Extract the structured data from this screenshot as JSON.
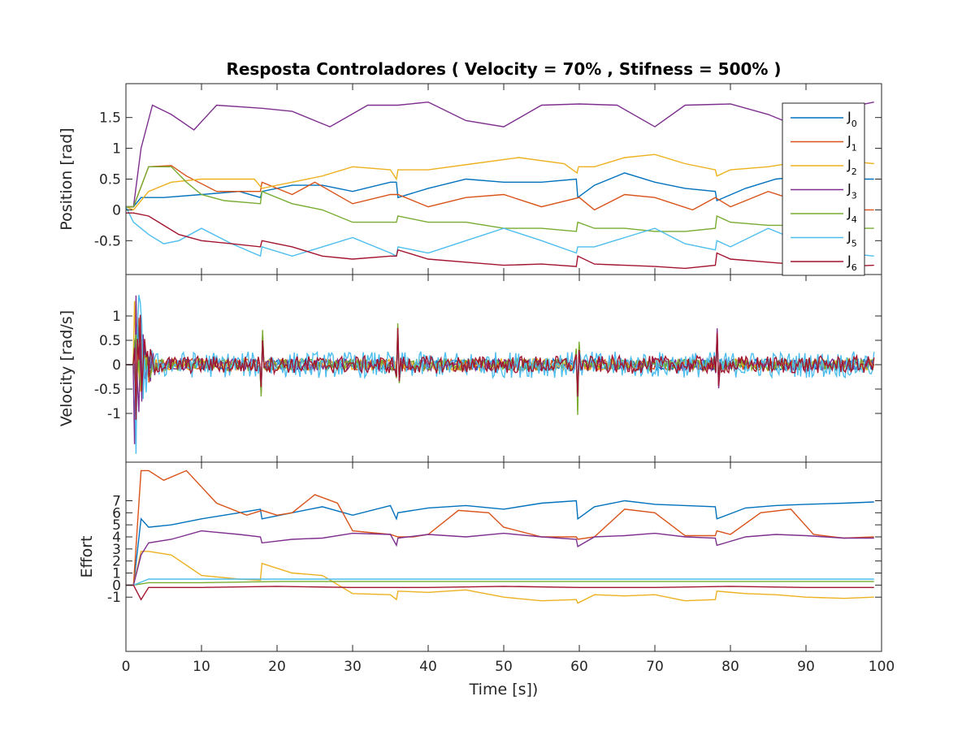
{
  "chart_data": [
    {
      "type": "line",
      "panel": "position",
      "title": "Resposta Controladores ( Velocity = 70% , Stifness = 500% )",
      "ylabel": "Position [rad]",
      "xlim": [
        0,
        100
      ],
      "ylim": [
        -1.05,
        2.05
      ],
      "yticks": [
        -0.5,
        0,
        0.5,
        1,
        1.5
      ],
      "ytick_labels": [
        "-0.5",
        "0",
        "0.5",
        "1",
        "1.5"
      ],
      "grid": false,
      "legend": "right",
      "series": [
        {
          "name": "J",
          "sub": "0",
          "color": "#0072BD",
          "x": [
            0,
            1,
            2,
            5,
            10,
            15,
            17.8,
            18,
            22,
            26,
            30,
            35,
            35.8,
            36,
            40,
            45,
            50,
            55,
            59.6,
            59.8,
            62,
            66,
            70,
            74,
            78,
            78.2,
            82,
            86,
            90,
            95,
            99
          ],
          "y": [
            0.05,
            0.05,
            0.2,
            0.2,
            0.25,
            0.3,
            0.2,
            0.3,
            0.4,
            0.4,
            0.3,
            0.45,
            0.45,
            0.2,
            0.35,
            0.5,
            0.45,
            0.45,
            0.5,
            0.2,
            0.4,
            0.6,
            0.45,
            0.35,
            0.3,
            0.15,
            0.35,
            0.5,
            0.55,
            0.5,
            0.5
          ]
        },
        {
          "name": "J",
          "sub": "1",
          "color": "#D95319",
          "x": [
            0,
            1,
            3,
            6,
            8,
            12,
            17.8,
            18,
            22,
            25,
            30,
            35,
            36,
            40,
            45,
            50,
            55,
            60,
            62,
            66,
            70,
            75,
            78,
            80,
            85,
            90,
            95,
            99
          ],
          "y": [
            0.05,
            0.05,
            0.7,
            0.72,
            0.55,
            0.3,
            0.3,
            0.45,
            0.25,
            0.45,
            0.1,
            0.25,
            0.25,
            0.05,
            0.2,
            0.25,
            0.05,
            0.2,
            0.0,
            0.25,
            0.2,
            0.0,
            0.2,
            0.05,
            0.3,
            0.1,
            0.0,
            0.0
          ]
        },
        {
          "name": "J",
          "sub": "2",
          "color": "#EDB120",
          "x": [
            0,
            1,
            3,
            6,
            10,
            17,
            18,
            22,
            26,
            30,
            35,
            35.8,
            36,
            40,
            46,
            52,
            58,
            59.7,
            59.9,
            62,
            66,
            70,
            74,
            78,
            78.2,
            80,
            85,
            90,
            95,
            99
          ],
          "y": [
            0.05,
            0.0,
            0.3,
            0.45,
            0.5,
            0.5,
            0.35,
            0.45,
            0.55,
            0.7,
            0.65,
            0.5,
            0.65,
            0.65,
            0.75,
            0.85,
            0.75,
            0.6,
            0.7,
            0.7,
            0.85,
            0.9,
            0.75,
            0.65,
            0.55,
            0.65,
            0.7,
            0.8,
            0.8,
            0.75
          ]
        },
        {
          "name": "J",
          "sub": "3",
          "color": "#7E2F8E",
          "x": [
            0,
            1,
            2,
            3.5,
            6,
            9,
            12,
            18,
            22,
            27,
            32,
            36,
            40,
            45,
            50,
            55,
            60,
            65,
            70,
            74,
            80,
            85,
            90,
            95,
            99
          ],
          "y": [
            0.05,
            0.05,
            1.0,
            1.7,
            1.55,
            1.3,
            1.7,
            1.65,
            1.6,
            1.35,
            1.7,
            1.7,
            1.75,
            1.45,
            1.35,
            1.7,
            1.72,
            1.7,
            1.35,
            1.7,
            1.72,
            1.55,
            1.3,
            1.65,
            1.75
          ]
        },
        {
          "name": "J",
          "sub": "4",
          "color": "#77AC30",
          "x": [
            0,
            1,
            3,
            6,
            8,
            10,
            13,
            17.8,
            18,
            22,
            26,
            30,
            35,
            35.8,
            36,
            40,
            45,
            50,
            55,
            59.6,
            59.8,
            62,
            66,
            70,
            74,
            78,
            78.2,
            80,
            85,
            90,
            95,
            99
          ],
          "y": [
            0.05,
            0.05,
            0.7,
            0.7,
            0.45,
            0.25,
            0.15,
            0.1,
            0.3,
            0.1,
            0.0,
            -0.2,
            -0.2,
            -0.2,
            -0.1,
            -0.2,
            -0.2,
            -0.3,
            -0.3,
            -0.35,
            -0.2,
            -0.3,
            -0.3,
            -0.35,
            -0.35,
            -0.3,
            -0.1,
            -0.2,
            -0.25,
            -0.25,
            -0.3,
            -0.3
          ]
        },
        {
          "name": "J",
          "sub": "5",
          "color": "#4DBEEE",
          "x": [
            0,
            1,
            3,
            5,
            7,
            10,
            14,
            17.8,
            18,
            22,
            26,
            30,
            35,
            35.8,
            36,
            40,
            45,
            50,
            55,
            59.6,
            59.8,
            62,
            66,
            70,
            74,
            78,
            78.2,
            80,
            85,
            90,
            95,
            99
          ],
          "y": [
            0.05,
            -0.2,
            -0.4,
            -0.55,
            -0.5,
            -0.3,
            -0.55,
            -0.75,
            -0.6,
            -0.75,
            -0.6,
            -0.45,
            -0.7,
            -0.75,
            -0.6,
            -0.7,
            -0.5,
            -0.3,
            -0.5,
            -0.7,
            -0.6,
            -0.6,
            -0.45,
            -0.3,
            -0.55,
            -0.65,
            -0.5,
            -0.6,
            -0.3,
            -0.55,
            -0.7,
            -0.75
          ]
        },
        {
          "name": "J",
          "sub": "6",
          "color": "#A2142F",
          "x": [
            0,
            1,
            3,
            5,
            7,
            10,
            14,
            17.8,
            18,
            22,
            26,
            30,
            35,
            35.8,
            36,
            40,
            45,
            50,
            55,
            59.6,
            59.8,
            62,
            66,
            70,
            74,
            78,
            78.2,
            80,
            85,
            90,
            95,
            99
          ],
          "y": [
            -0.05,
            -0.05,
            -0.1,
            -0.25,
            -0.4,
            -0.5,
            -0.55,
            -0.6,
            -0.5,
            -0.6,
            -0.75,
            -0.8,
            -0.75,
            -0.75,
            -0.65,
            -0.8,
            -0.85,
            -0.9,
            -0.88,
            -0.92,
            -0.75,
            -0.88,
            -0.9,
            -0.92,
            -0.95,
            -0.9,
            -0.7,
            -0.8,
            -0.85,
            -0.9,
            -0.92,
            -0.9
          ]
        }
      ]
    },
    {
      "type": "line",
      "panel": "velocity",
      "ylabel": "Velocity [rad/s]",
      "xlim": [
        0,
        100
      ],
      "ylim": [
        -2,
        1.85
      ],
      "yticks": [
        -1,
        -0.5,
        0,
        0.5,
        1
      ],
      "ytick_labels": [
        "-1",
        "-0.5",
        "0",
        "0.5",
        "1"
      ],
      "grid": false,
      "noise_amplitude": 0.15,
      "spike_times": [
        1.5,
        18,
        36,
        59.8,
        78.3
      ],
      "series": [
        {
          "name": "J",
          "sub": "0",
          "color": "#0072BD",
          "spikes": [
            1.0,
            0.8,
            0.6,
            0.7,
            0.8
          ]
        },
        {
          "name": "J",
          "sub": "1",
          "color": "#D95319",
          "spikes": [
            1.4,
            0.7,
            0.8,
            0.9,
            0.7
          ]
        },
        {
          "name": "J",
          "sub": "2",
          "color": "#EDB120",
          "spikes": [
            1.2,
            0.9,
            0.7,
            1.0,
            0.7
          ]
        },
        {
          "name": "J",
          "sub": "3",
          "color": "#7E2F8E",
          "spikes": [
            1.6,
            0.9,
            0.6,
            0.8,
            0.9
          ]
        },
        {
          "name": "J",
          "sub": "4",
          "color": "#77AC30",
          "spikes": [
            1.3,
            1.0,
            0.9,
            1.1,
            0.6
          ]
        },
        {
          "name": "J",
          "sub": "5",
          "color": "#4DBEEE",
          "spikes": [
            1.9,
            0.6,
            0.7,
            0.7,
            0.6
          ]
        },
        {
          "name": "J",
          "sub": "6",
          "color": "#A2142F",
          "spikes": [
            1.5,
            0.7,
            0.8,
            0.7,
            0.8
          ]
        }
      ],
      "xticks": [
        0,
        10,
        20,
        30,
        40,
        50,
        60,
        70,
        80,
        90,
        100
      ]
    },
    {
      "type": "line",
      "panel": "effort",
      "ylabel": "Effort",
      "xlabel": "Time [s])",
      "xlim": [
        0,
        100
      ],
      "ylim": [
        -5.5,
        10.2
      ],
      "yticks": [
        -1,
        0,
        1,
        2,
        3,
        4,
        5,
        6,
        7
      ],
      "ytick_labels": [
        "-1",
        "0",
        "1",
        "2",
        "3",
        "4",
        "5",
        "6",
        "7"
      ],
      "xticks": [
        0,
        10,
        20,
        30,
        40,
        50,
        60,
        70,
        80,
        90,
        100
      ],
      "xtick_labels": [
        "0",
        "10",
        "20",
        "30",
        "40",
        "50",
        "60",
        "70",
        "80",
        "90",
        "100"
      ],
      "grid": false,
      "series": [
        {
          "name": "J",
          "sub": "0",
          "color": "#0072BD",
          "x": [
            0,
            1,
            2,
            3,
            6,
            10,
            15,
            17.8,
            18,
            22,
            26,
            30,
            35,
            35.8,
            36,
            40,
            45,
            50,
            55,
            59.6,
            59.8,
            62,
            66,
            70,
            74,
            78,
            78.2,
            82,
            86,
            90,
            95,
            99
          ],
          "y": [
            0,
            0,
            5.5,
            4.8,
            5.0,
            5.5,
            6,
            6.3,
            5.5,
            6.0,
            6.5,
            5.8,
            6.6,
            5.5,
            6.0,
            6.4,
            6.6,
            6.3,
            6.8,
            7.0,
            5.5,
            6.5,
            7.0,
            6.7,
            6.6,
            6.5,
            5.5,
            6.4,
            6.6,
            6.7,
            6.8,
            6.9
          ]
        },
        {
          "name": "J",
          "sub": "1",
          "color": "#D95319",
          "x": [
            0,
            1,
            2,
            3,
            5,
            8,
            12,
            16,
            18,
            20,
            22,
            25,
            28,
            30,
            35,
            36,
            38,
            40,
            44,
            48,
            50,
            55,
            59.6,
            59.8,
            62,
            66,
            70,
            74,
            78,
            78.2,
            80,
            84,
            88,
            91,
            95,
            99
          ],
          "y": [
            0,
            0,
            9.5,
            9.5,
            8.7,
            9.5,
            6.8,
            5.8,
            6.2,
            5.8,
            6.0,
            7.5,
            6.8,
            4.5,
            4.2,
            4.0,
            4.0,
            4.2,
            6.2,
            6.0,
            4.8,
            4.0,
            4.0,
            3.8,
            4.0,
            6.3,
            6.0,
            4.1,
            4.1,
            4.5,
            4.2,
            6.0,
            6.3,
            4.2,
            3.9,
            4.0
          ]
        },
        {
          "name": "J",
          "sub": "2",
          "color": "#EDB120",
          "x": [
            0,
            1,
            2,
            3,
            6,
            10,
            15,
            17.8,
            18,
            22,
            26,
            30,
            35,
            35.8,
            36,
            40,
            45,
            50,
            55,
            59.6,
            59.8,
            62,
            66,
            70,
            74,
            78,
            78.2,
            82,
            86,
            90,
            95,
            99
          ],
          "y": [
            0,
            0,
            2.8,
            2.8,
            2.5,
            0.8,
            0.5,
            0.4,
            1.8,
            1.0,
            0.8,
            -0.7,
            -0.8,
            -1.2,
            -0.5,
            -0.6,
            -0.4,
            -1.0,
            -1.3,
            -1.2,
            -1.5,
            -0.8,
            -0.9,
            -0.8,
            -1.3,
            -1.2,
            -0.5,
            -0.7,
            -0.8,
            -1.0,
            -1.1,
            -1.0
          ]
        },
        {
          "name": "J",
          "sub": "3",
          "color": "#7E2F8E",
          "x": [
            0,
            1,
            2,
            3,
            6,
            10,
            15,
            17.8,
            18,
            22,
            26,
            30,
            35,
            35.8,
            36,
            40,
            45,
            50,
            55,
            59.6,
            59.8,
            62,
            66,
            70,
            74,
            78,
            78.2,
            82,
            86,
            90,
            95,
            99
          ],
          "y": [
            0,
            0,
            2.5,
            3.5,
            3.8,
            4.5,
            4.2,
            4.0,
            3.5,
            3.8,
            3.9,
            4.3,
            4.2,
            3.3,
            3.9,
            4.2,
            4.0,
            4.3,
            4.0,
            3.8,
            3.2,
            4.0,
            4.1,
            4.3,
            4.0,
            3.9,
            3.3,
            4.0,
            4.2,
            4.1,
            3.9,
            3.9
          ]
        },
        {
          "name": "J",
          "sub": "4",
          "color": "#77AC30",
          "x": [
            0,
            1,
            3,
            10,
            20,
            30,
            40,
            50,
            60,
            70,
            80,
            90,
            99
          ],
          "y": [
            0,
            0,
            0.2,
            0.2,
            0.3,
            0.3,
            0.3,
            0.3,
            0.3,
            0.3,
            0.3,
            0.3,
            0.3
          ]
        },
        {
          "name": "J",
          "sub": "5",
          "color": "#4DBEEE",
          "x": [
            0,
            1,
            3,
            10,
            20,
            30,
            40,
            50,
            60,
            70,
            80,
            90,
            99
          ],
          "y": [
            0,
            0,
            0.5,
            0.5,
            0.5,
            0.5,
            0.5,
            0.5,
            0.5,
            0.5,
            0.5,
            0.5,
            0.5
          ]
        },
        {
          "name": "J",
          "sub": "6",
          "color": "#A2142F",
          "x": [
            0,
            1,
            2,
            3,
            10,
            20,
            30,
            40,
            50,
            60,
            70,
            80,
            90,
            99
          ],
          "y": [
            0,
            0,
            -1.2,
            -0.2,
            -0.2,
            -0.1,
            -0.2,
            -0.2,
            -0.1,
            -0.2,
            -0.2,
            -0.1,
            -0.2,
            -0.2
          ]
        }
      ]
    }
  ]
}
